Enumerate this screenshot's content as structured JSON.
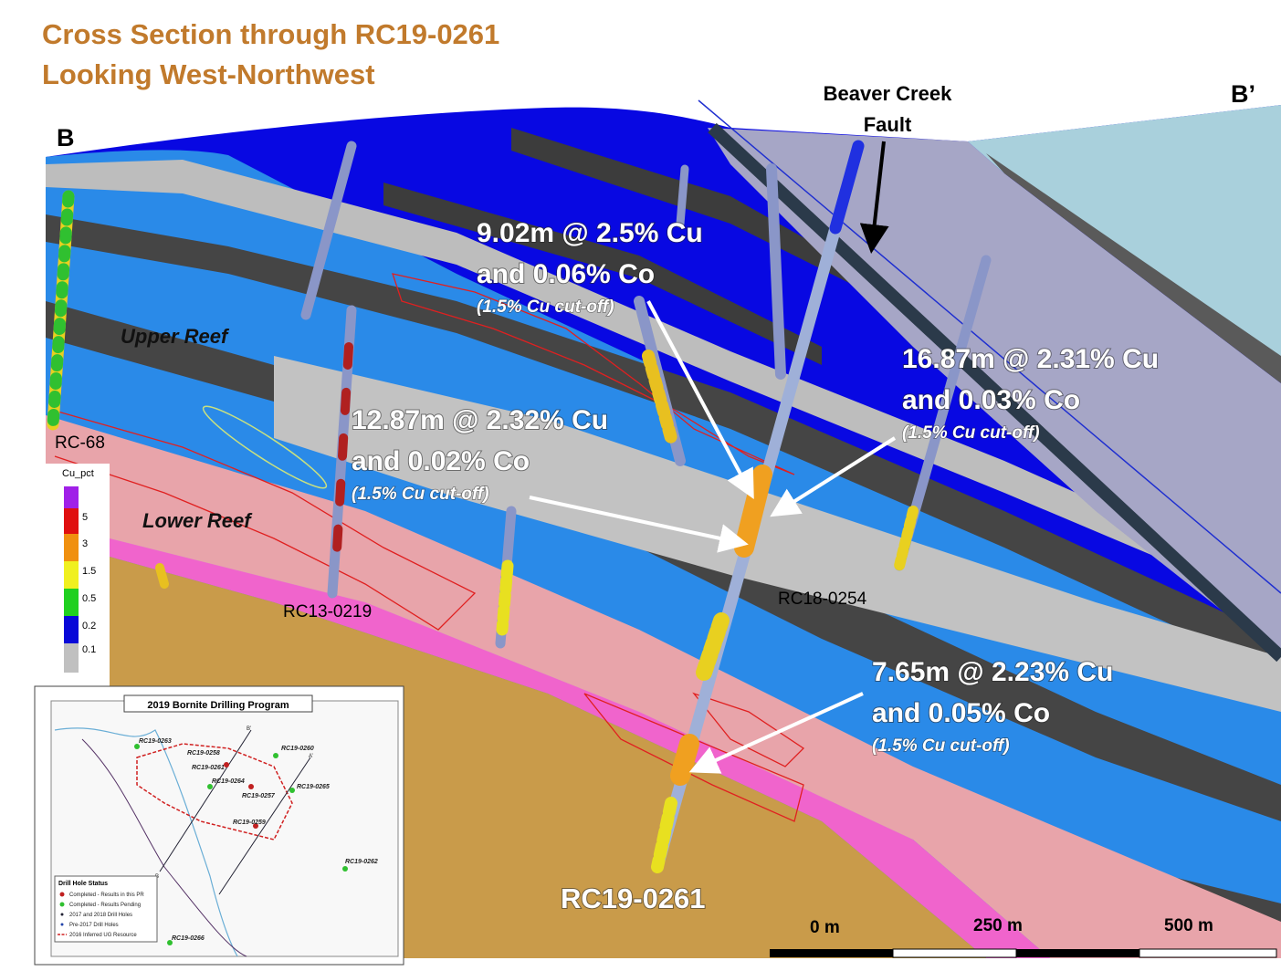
{
  "header": {
    "title_lines": [
      "Cross Section through RC19-0261",
      "Looking West-Northwest"
    ]
  },
  "section_labels": {
    "start": "B",
    "end": "B’"
  },
  "fault": {
    "label_lines": [
      "Beaver Creek",
      "Fault"
    ]
  },
  "units": [
    "Upper Reef",
    "Lower Reef"
  ],
  "drill_holes": [
    "RC-68",
    "RC13-0219",
    "RC18-0254",
    "RC19-0261"
  ],
  "intercepts": [
    {
      "lines": [
        "9.02m @ 2.5% Cu",
        "and 0.06% Co"
      ],
      "note": "(1.5% Cu cut-off)"
    },
    {
      "lines": [
        "12.87m @ 2.32% Cu",
        "and 0.02% Co"
      ],
      "note": "(1.5% Cu cut-off)"
    },
    {
      "lines": [
        "16.87m @ 2.31% Cu",
        "and 0.03% Co"
      ],
      "note": "(1.5% Cu cut-off)"
    },
    {
      "lines": [
        "7.65m @ 2.23% Cu",
        "and 0.05% Co"
      ],
      "note": "(1.5% Cu cut-off)"
    }
  ],
  "legend": {
    "title": "Cu_pct",
    "labels": [
      "5",
      "3",
      "1.5",
      "0.5",
      "0.2",
      "0.1"
    ]
  },
  "scale_bar": [
    "0 m",
    "250 m",
    "500 m"
  ],
  "inset": {
    "title": "2019 Bornite Drilling Program",
    "holes": [
      "RC19-0263",
      "RC19-0258",
      "RC19-0261",
      "RC19-0264",
      "RC19-0257",
      "RC19-0259",
      "RC19-0260",
      "RC19-0265",
      "RC19-0262",
      "RC19-0266"
    ],
    "section_ends": [
      "B’",
      "A’",
      "B"
    ],
    "status_title": "Drill Hole Status",
    "status_items": [
      "Completed - Results in this PR",
      "Completed - Results Pending",
      "2017 and 2018 Drill Holes",
      "Pre-2017 Drill Holes",
      "2016 Inferred UG Resource"
    ]
  }
}
